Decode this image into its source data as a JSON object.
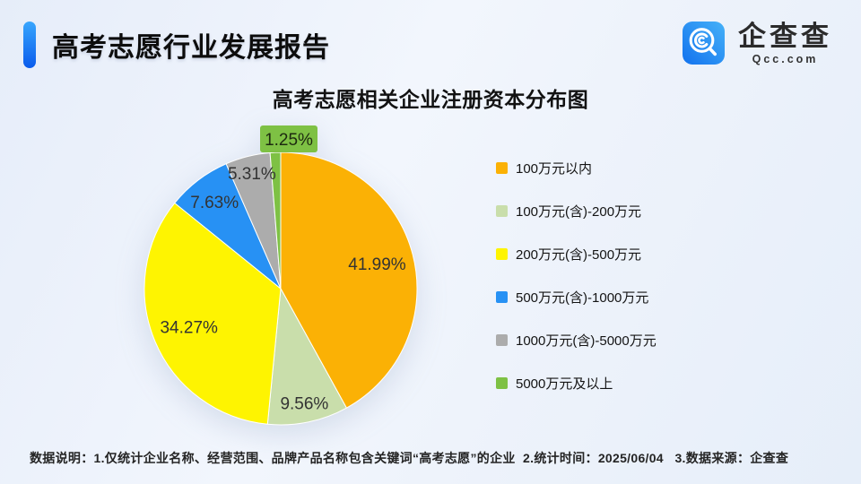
{
  "header": {
    "title": "高考志愿行业发展报告",
    "accent_color": "#1677f0"
  },
  "logo": {
    "name": "企查查",
    "domain": "Qcc.com",
    "icon": "qcc-magnifier-icon",
    "icon_gradient": [
      "#45b1f8",
      "#1272ee"
    ]
  },
  "chart_title": "高考志愿相关企业注册资本分布图",
  "chart_data": {
    "type": "pie",
    "title": "高考志愿相关企业注册资本分布图",
    "categories": [
      "100万元以内",
      "100万元(含)-200万元",
      "200万元(含)-500万元",
      "500万元(含)-1000万元",
      "1000万元(含)-5000万元",
      "5000万元及以上"
    ],
    "values": [
      41.99,
      9.56,
      34.27,
      7.63,
      5.31,
      1.25
    ],
    "labels": [
      "41.99%",
      "9.56%",
      "34.27%",
      "7.63%",
      "5.31%",
      "1.25%"
    ],
    "colors": [
      "#fbb105",
      "#c9deab",
      "#fef401",
      "#2791f4",
      "#acacac",
      "#7ec144"
    ],
    "start_angle_deg": 0,
    "direction": "clockwise",
    "legend_position": "right",
    "label_color": "#333333",
    "label_radius_factors": [
      0.73,
      0.86,
      0.73,
      0.8,
      0.87,
      1.0
    ],
    "callout_index": 5,
    "callout_fill": "#7ec144",
    "callout_text_color": "#1d2a10"
  },
  "footer": {
    "text": "数据说明：1.仅统计企业名称、经营范围、品牌产品名称包含关键词“高考志愿”的企业  2.统计时间：2025/06/04   3.数据来源：企查查"
  }
}
